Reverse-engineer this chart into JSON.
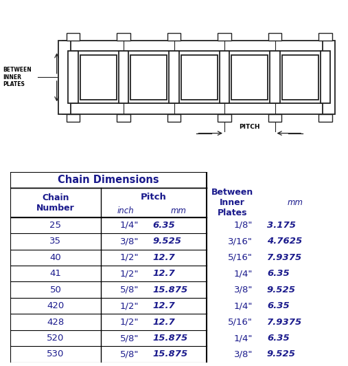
{
  "title": "Chain Dimensions",
  "rows": [
    [
      "25",
      "1/4\"",
      "6.35",
      "1/8\"",
      "3.175"
    ],
    [
      "35",
      "3/8\"",
      "9.525",
      "3/16\"",
      "4.7625"
    ],
    [
      "40",
      "1/2\"",
      "12.7",
      "5/16\"",
      "7.9375"
    ],
    [
      "41",
      "1/2\"",
      "12.7",
      "1/4\"",
      "6.35"
    ],
    [
      "50",
      "5/8\"",
      "15.875",
      "3/8\"",
      "9.525"
    ],
    [
      "420",
      "1/2\"",
      "12.7",
      "1/4\"",
      "6.35"
    ],
    [
      "428",
      "1/2\"",
      "12.7",
      "5/16\"",
      "7.9375"
    ],
    [
      "520",
      "5/8\"",
      "15.875",
      "1/4\"",
      "6.35"
    ],
    [
      "530",
      "5/8\"",
      "15.875",
      "3/8\"",
      "9.525"
    ]
  ],
  "bg_color": "#ffffff",
  "border_color": "#000000",
  "header_bold_color": "#1a1a8c",
  "data_color": "#1a1a8c",
  "diagram_color": "#222222",
  "fig_width": 5.07,
  "fig_height": 5.32
}
